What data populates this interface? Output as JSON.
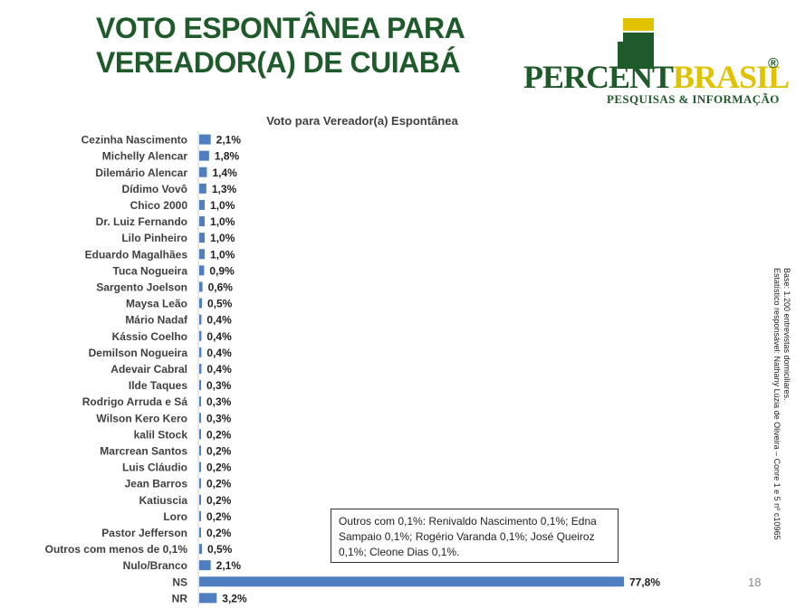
{
  "header": {
    "title_line1": "VOTO ESPONTÂNEA PARA",
    "title_line2": "VEREADOR(A) DE CUIABÁ"
  },
  "logo": {
    "word_part1": "PERCENT",
    "word_part2": "BRASIL",
    "registered": "®",
    "subtitle": "PESQUISAS & INFORMAÇÃO",
    "colors": {
      "green": "#1f5a2a",
      "yellow": "#e1c200"
    }
  },
  "side_note": {
    "line1": "Base: 1.200 entrevistas domiciliares.",
    "line2": "Estatístico responsável: Nathany Lúzia de Oliveira – Conre 1 e 5 nº c10965"
  },
  "others_note": "Outros com 0,1%: Renivaldo Nascimento 0,1%; Edna Sampaio 0,1%; Rogério Varanda 0,1%; José Queiroz 0,1%; Cleone Dias 0,1%.",
  "page_number": "18",
  "chart_data": {
    "type": "bar",
    "orientation": "horizontal",
    "title": "Voto para Vereador(a) Espontânea",
    "bar_color": "#4f7fbf",
    "xlim": [
      0,
      77.8
    ],
    "categories": [
      "Cezinha Nascimento",
      "Michelly Alencar",
      "Dilemário Alencar",
      "Dídimo Vovô",
      "Chico 2000",
      "Dr. Luiz Fernando",
      "Lilo Pinheiro",
      "Eduardo Magalhães",
      "Tuca Nogueira",
      "Sargento Joelson",
      "Maysa Leão",
      "Mário Nadaf",
      "Kássio Coelho",
      "Demilson Nogueira",
      "Adevair Cabral",
      "Ilde Taques",
      "Rodrigo Arruda e Sá",
      "Wilson Kero Kero",
      "kalil Stock",
      "Marcrean Santos",
      "Luis Cláudio",
      "Jean Barros",
      "Katiuscia",
      "Loro",
      "Pastor Jefferson",
      "Outros com menos de 0,1%",
      "Nulo/Branco",
      "NS",
      "NR"
    ],
    "values": [
      2.1,
      1.8,
      1.4,
      1.3,
      1.0,
      1.0,
      1.0,
      1.0,
      0.9,
      0.6,
      0.5,
      0.4,
      0.4,
      0.4,
      0.4,
      0.3,
      0.3,
      0.3,
      0.2,
      0.2,
      0.2,
      0.2,
      0.2,
      0.2,
      0.2,
      0.5,
      2.1,
      77.8,
      3.2
    ],
    "value_labels": [
      "2,1%",
      "1,8%",
      "1,4%",
      "1,3%",
      "1,0%",
      "1,0%",
      "1,0%",
      "1,0%",
      "0,9%",
      "0,6%",
      "0,5%",
      "0,4%",
      "0,4%",
      "0,4%",
      "0,4%",
      "0,3%",
      "0,3%",
      "0,3%",
      "0,2%",
      "0,2%",
      "0,2%",
      "0,2%",
      "0,2%",
      "0,2%",
      "0,2%",
      "0,5%",
      "2,1%",
      "77,8%",
      "3,2%"
    ]
  }
}
